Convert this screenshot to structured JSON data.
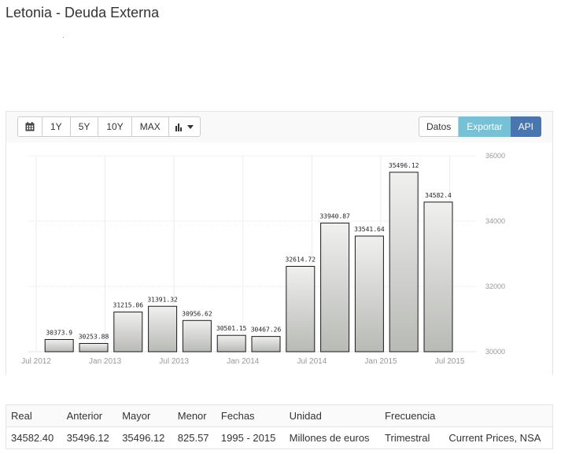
{
  "page": {
    "title": "Letonia - Deuda Externa"
  },
  "toolbar": {
    "calendar_icon": "calendar-icon",
    "ranges": [
      "1Y",
      "5Y",
      "10Y",
      "MAX"
    ],
    "chart_type_icon": "bar-chart-icon",
    "datos_label": "Datos",
    "exportar_label": "Exportar",
    "api_label": "API"
  },
  "colors": {
    "exportar": "#77c1d6",
    "api": "#4a76b0",
    "bar_top": "#f0f0ee",
    "bar_bottom": "#b8bab6"
  },
  "chart_data": {
    "type": "bar",
    "title": "",
    "xlabel": "",
    "ylabel": "",
    "x": [
      "2012-09",
      "2012-12",
      "2013-03",
      "2013-06",
      "2013-09",
      "2013-12",
      "2014-03",
      "2014-06",
      "2014-09",
      "2014-12",
      "2015-03",
      "2015-06"
    ],
    "values": [
      30373.9,
      30253.88,
      31215.06,
      31391.32,
      30956.62,
      30501.15,
      30467.26,
      32614.72,
      33940.87,
      33541.64,
      35496.12,
      34582.4
    ],
    "value_labels": [
      "30373.9",
      "30253.88",
      "31215.06",
      "31391.32",
      "30956.62",
      "30501.15",
      "30467.26",
      "32614.72",
      "33940.87",
      "33541.64",
      "35496.12",
      "34582.4"
    ],
    "ylim": [
      30000,
      36000
    ],
    "y_ticks": [
      30000,
      32000,
      34000,
      36000
    ],
    "y_tick_labels": [
      "30000",
      "32000",
      "34000",
      "36000"
    ],
    "x_ticks": [
      "Jul 2012",
      "Jan 2013",
      "Jul 2013",
      "Jan 2014",
      "Jul 2014",
      "Jan 2015",
      "Jul 2015"
    ],
    "grid": true,
    "y_axis_position": "right"
  },
  "summary_table": {
    "headers": [
      "Real",
      "Anterior",
      "Mayor",
      "Menor",
      "Fechas",
      "Unidad",
      "Frecuencia",
      ""
    ],
    "row": [
      "34582.40",
      "35496.12",
      "35496.12",
      "825.57",
      "1995 - 2015",
      "Millones de euros",
      "Trimestral",
      "Current Prices, NSA"
    ]
  }
}
